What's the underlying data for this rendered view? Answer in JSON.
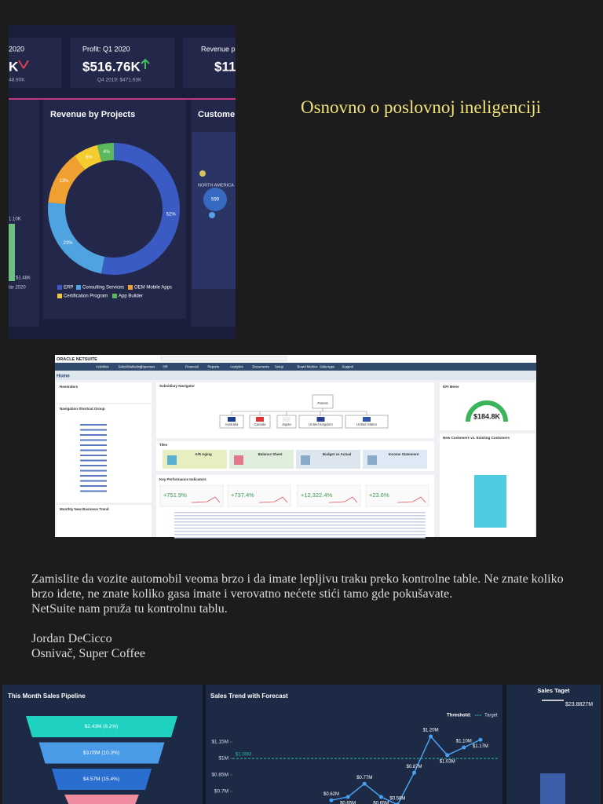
{
  "title": "Osnovno o poslovnoj ineligenciji",
  "quote": {
    "paragraphs": [
      "Zamislite da vozite automobil veoma brzo i da imate lepljivu traku preko kontrolne table. Ne znate koliko brzo idete, ne znate koliko gasa imate i verovatno nećete stići tamo gde pokušavate.",
      "NetSuite nam pruža tu kontrolnu tablu."
    ],
    "author": "Jordan DeCicco",
    "role": "Osnivač, Super Coffee"
  },
  "dashboard1": {
    "cards": [
      {
        "title": "2020",
        "value": "K",
        "note": "48.90K"
      },
      {
        "title": "Profit: Q1 2020",
        "value": "$516.76K",
        "note": "Q4 2019: $471.63K"
      },
      {
        "title": "Revenue p",
        "value": "$11"
      }
    ],
    "side": [
      "1.10K",
      "$1.48K",
      "lar 2020"
    ],
    "map": {
      "title": "Custome",
      "region": "NORTH AMERICA",
      "count": "599"
    }
  },
  "netsuite": {
    "brand": "ORACLE NETSUITE",
    "nav": [
      "Activities",
      "Sales/Marketing",
      "Expenses",
      "HR",
      "Financial",
      "Reports",
      "Analytics",
      "Documents",
      "Setup",
      "Board Metrics",
      "SuiteApps",
      "Support"
    ],
    "page": "Home",
    "left": [
      "Reminders",
      "Navigation Shortcut Group",
      "Monthly New Business Trend"
    ],
    "subsidiary": {
      "title": "Subsidiary Navigator",
      "parent": "Parent",
      "children": [
        "Australia",
        "Canada",
        "Japan",
        "United Kingdom",
        "United States"
      ]
    },
    "tiles": {
      "title": "Tiles",
      "items": [
        "A/R Aging",
        "Balance Sheet",
        "Budget vs Actual",
        "Income Statement"
      ]
    },
    "kpi": {
      "title": "Key Performance Indicators",
      "items": [
        "+751.9%",
        "+737.4%",
        "+12,322.4%",
        "+23.6%"
      ]
    },
    "meter": {
      "title": "KPI Meter",
      "value": "$184.8K"
    },
    "customers": {
      "title": "New Customers vs. Existing Customers"
    }
  },
  "chart_data": [
    {
      "type": "pie",
      "title": "Revenue by Projects",
      "categories": [
        "ERP",
        "Consulting Services",
        "OEM Mobile Apps",
        "Certification Program",
        "App Builder"
      ],
      "values": [
        52,
        23,
        13,
        6,
        4
      ],
      "value_labels": [
        "52%",
        "23%",
        "13%",
        "6%",
        "4%"
      ],
      "colors": [
        "#3b5bc4",
        "#4fa3e0",
        "#f0a030",
        "#f5cc30",
        "#5cb85c"
      ]
    },
    {
      "type": "funnel",
      "title": "This Month Sales Pipeline",
      "values": [
        2.43,
        3.05,
        4.57
      ],
      "value_labels": [
        "$2.43M (8.2%)",
        "$3.05M (10.3%)",
        "$4.57M (15.4%)"
      ],
      "colors": [
        "#1fd1c1",
        "#4a9be8",
        "#2a6fd0"
      ]
    },
    {
      "type": "line",
      "title": "Sales Trend with Forecast",
      "color": "#4aa0f0",
      "values": [
        0.62,
        0.65,
        0.77,
        0.65,
        0.58,
        0.87,
        1.2,
        1.03,
        1.1,
        1.17
      ],
      "value_labels": [
        "$0.62M",
        "$0.65M",
        "$0.77M",
        "$0.65M",
        "$0.58M",
        "$0.87M",
        "$1.20M",
        "$1.03M",
        "$1.10M",
        "$1.17M"
      ],
      "ylim": [
        0.55,
        1.45
      ],
      "yticks": [
        {
          "value": 1.15,
          "label": "$1.15M"
        },
        {
          "value": 1,
          "label": "$1M"
        },
        {
          "value": 0.85,
          "label": "$0.85M"
        },
        {
          "value": 0.7,
          "label": "$0.7M"
        }
      ],
      "threshold": {
        "value": 1,
        "label": "$1.00M"
      },
      "legend_title": "Threshold:",
      "legend_name": "Target"
    }
  ],
  "sales_target": {
    "title": "Sales Taget",
    "value": "$23.8827M"
  }
}
